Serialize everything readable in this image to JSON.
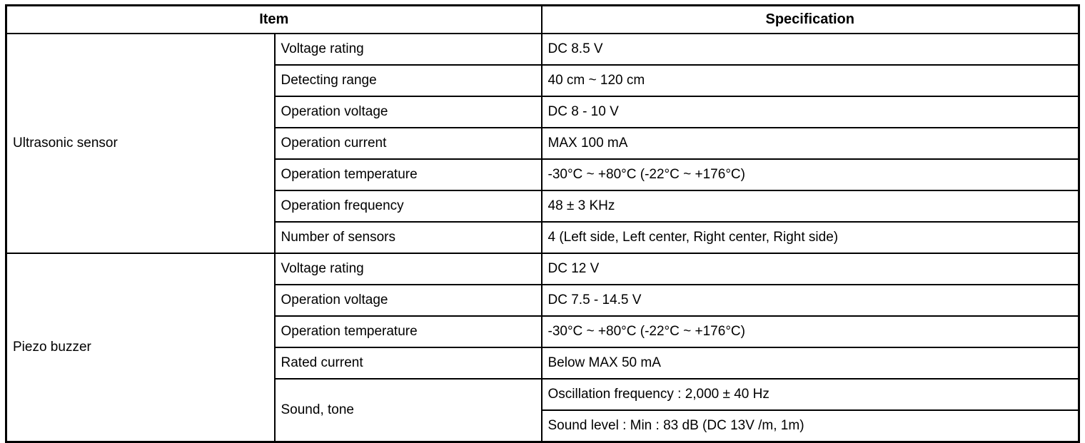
{
  "table": {
    "headers": {
      "item": "Item",
      "specification": "Specification"
    },
    "groups": [
      {
        "category": "Ultrasonic sensor",
        "rows": [
          {
            "item": "Voltage rating",
            "spec": "DC 8.5 V"
          },
          {
            "item": "Detecting range",
            "spec": "40 cm ~ 120 cm"
          },
          {
            "item": "Operation voltage",
            "spec": "DC 8 - 10 V"
          },
          {
            "item": "Operation current",
            "spec": "MAX 100 mA"
          },
          {
            "item": "Operation temperature",
            "spec": "-30°C ~ +80°C (-22°C ~ +176°C)"
          },
          {
            "item": "Operation frequency",
            "spec": "48 ± 3 KHz"
          },
          {
            "item": "Number of sensors",
            "spec": "4 (Left side, Left center, Right center, Right side)"
          }
        ]
      },
      {
        "category": "Piezo buzzer",
        "rows": [
          {
            "item": "Voltage rating",
            "spec": "DC 12 V"
          },
          {
            "item": "Operation voltage",
            "spec": "DC 7.5 - 14.5 V"
          },
          {
            "item": "Operation temperature",
            "spec": "-30°C ~ +80°C (-22°C ~ +176°C)"
          },
          {
            "item": "Rated current",
            "spec": "Below MAX 50 mA"
          },
          {
            "item": "Sound, tone",
            "spec": "Oscillation frequency : 2,000 ± 40 Hz"
          },
          {
            "spec": "Sound level : Min : 83 dB (DC 13V /m, 1m)"
          }
        ]
      }
    ]
  }
}
